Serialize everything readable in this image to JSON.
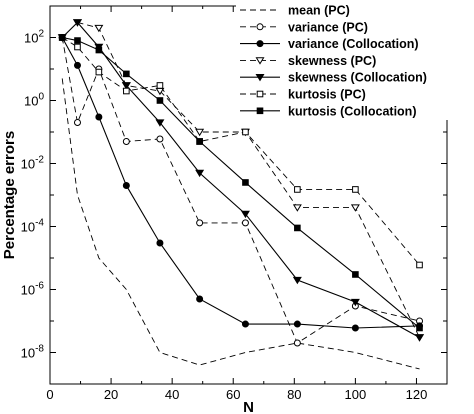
{
  "chart_data": {
    "type": "line",
    "xlabel": "N",
    "ylabel": "Percentage errors",
    "x_ticks": [
      "0",
      "20",
      "40",
      "60",
      "80",
      "100",
      "120"
    ],
    "y_ticks": [
      {
        "base": "10",
        "exp": "-8",
        "value": 1e-08
      },
      {
        "base": "10",
        "exp": "-6",
        "value": 1e-06
      },
      {
        "base": "10",
        "exp": "-4",
        "value": 0.0001
      },
      {
        "base": "10",
        "exp": "-2",
        "value": 0.01
      },
      {
        "base": "10",
        "exp": "0",
        "value": 1
      },
      {
        "base": "10",
        "exp": "2",
        "value": 100
      }
    ],
    "xlim": [
      0,
      130
    ],
    "ylim": [
      1e-09,
      1000.0
    ],
    "y_scale": "log",
    "grid": false,
    "legend_position": "top-right",
    "series": [
      {
        "name": "mean (PC)",
        "line": "dashed",
        "marker": "none",
        "x": [
          4,
          9,
          16,
          25,
          36,
          49,
          64,
          81,
          100,
          121
        ],
        "y": [
          5,
          0.001,
          1e-05,
          1e-06,
          1e-08,
          4e-09,
          1e-08,
          2e-08,
          1e-08,
          3e-09
        ]
      },
      {
        "name": "variance (PC)",
        "line": "dashed",
        "marker": "circle-open",
        "x": [
          4,
          9,
          16,
          25,
          36,
          49,
          64,
          81,
          100,
          121
        ],
        "y": [
          100,
          0.2,
          10,
          0.05,
          0.06,
          0.00013,
          0.00013,
          2e-08,
          3e-07,
          1e-07
        ]
      },
      {
        "name": "variance (Collocation)",
        "line": "solid",
        "marker": "circle-filled",
        "x": [
          4,
          9,
          16,
          25,
          36,
          49,
          64,
          81,
          100,
          121
        ],
        "y": [
          100,
          13,
          0.3,
          0.002,
          3e-05,
          5e-07,
          8e-08,
          8e-08,
          6e-08,
          7e-08
        ]
      },
      {
        "name": "skewness (PC)",
        "line": "dashed",
        "marker": "triangle-down-open",
        "x": [
          9,
          16,
          25,
          36,
          49,
          64,
          81,
          100,
          121
        ],
        "y": [
          300,
          200,
          3,
          2,
          0.1,
          0.1,
          0.0004,
          0.0004,
          3e-08
        ]
      },
      {
        "name": "skewness (Collocation)",
        "line": "solid",
        "marker": "triangle-down-filled",
        "x": [
          4,
          9,
          16,
          25,
          36,
          49,
          64,
          81,
          100,
          121
        ],
        "y": [
          100,
          300,
          50,
          3,
          0.2,
          0.005,
          0.00025,
          2e-06,
          4e-07,
          3e-08
        ]
      },
      {
        "name": "kurtosis (PC)",
        "line": "dashed",
        "marker": "square-open",
        "x": [
          4,
          9,
          16,
          25,
          36,
          49,
          64,
          81,
          100,
          121
        ],
        "y": [
          100,
          50,
          8,
          2,
          3,
          0.05,
          0.1,
          0.0015,
          0.0015,
          6e-06
        ]
      },
      {
        "name": "kurtosis (Collocation)",
        "line": "solid",
        "marker": "square-filled",
        "x": [
          4,
          9,
          16,
          25,
          36,
          49,
          64,
          81,
          100,
          121
        ],
        "y": [
          100,
          80,
          40,
          7,
          1,
          0.05,
          0.0025,
          9e-05,
          3e-06,
          6e-08
        ]
      }
    ]
  }
}
